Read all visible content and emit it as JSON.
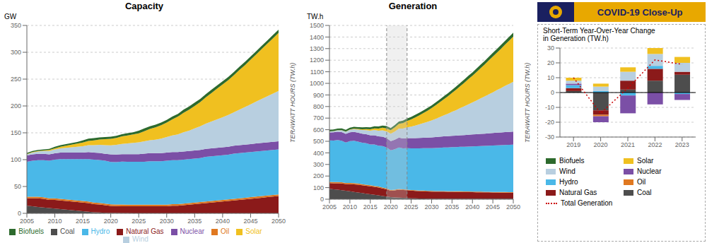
{
  "chart_data": [
    {
      "type": "area",
      "title": "Capacity",
      "ylabel": "GW",
      "annotations": [
        "TERAWATT HOURS  (TW.h)"
      ],
      "stacked": true,
      "grid": true,
      "legend": "bottom",
      "x": [
        2005,
        2006,
        2007,
        2008,
        2009,
        2010,
        2011,
        2012,
        2013,
        2014,
        2015,
        2016,
        2017,
        2018,
        2019,
        2020,
        2021,
        2022,
        2023,
        2024,
        2025,
        2026,
        2027,
        2028,
        2029,
        2030,
        2031,
        2032,
        2033,
        2034,
        2035,
        2036,
        2037,
        2038,
        2039,
        2040,
        2041,
        2042,
        2043,
        2044,
        2045,
        2046,
        2047,
        2048,
        2049,
        2050
      ],
      "xlim": [
        2005,
        2050
      ],
      "xticks": [
        2005,
        2010,
        2015,
        2020,
        2025,
        2030,
        2035,
        2040,
        2045,
        2050
      ],
      "ylim": [
        0,
        350
      ],
      "yticks": [
        0,
        50,
        100,
        150,
        200,
        250,
        300,
        350
      ],
      "series": [
        {
          "name": "Coal",
          "color": "#4d4d4d",
          "values": [
            14,
            13,
            12,
            11,
            10,
            9,
            8,
            7,
            6,
            5,
            4,
            3,
            2,
            1.5,
            1,
            0.8,
            0.5,
            0.3,
            0.2,
            0.1,
            0.1,
            0.1,
            0.1,
            0.1,
            0.1,
            0.1,
            0.1,
            0.1,
            0.1,
            0.1,
            0.1,
            0.1,
            0.1,
            0.1,
            0.1,
            0.1,
            0.1,
            0.1,
            0.1,
            0.1,
            0.1,
            0.1,
            0.1,
            0.1,
            0.1,
            0.1
          ]
        },
        {
          "name": "Natural Gas",
          "color": "#8b1a1a",
          "values": [
            14,
            15,
            16,
            16,
            15,
            16,
            16,
            16,
            16,
            16,
            16,
            16,
            15,
            15,
            14,
            13,
            13,
            13,
            13,
            13,
            13,
            13,
            13,
            13,
            13,
            13,
            14,
            14,
            15,
            16,
            17,
            18,
            19,
            20,
            21,
            22,
            23,
            24,
            25,
            26,
            27,
            28,
            29,
            30,
            31,
            32
          ]
        },
        {
          "name": "Oil",
          "color": "#e07820",
          "values": [
            3,
            3,
            3,
            3,
            3,
            3,
            3,
            3,
            3,
            3,
            3,
            3,
            3,
            3,
            3,
            3,
            3,
            3,
            3,
            3,
            3,
            3,
            3,
            3,
            3,
            3,
            3,
            3,
            3,
            3,
            3,
            3,
            3,
            3,
            3,
            3,
            3,
            3,
            3,
            3,
            3,
            3,
            3,
            3,
            3,
            3
          ]
        },
        {
          "name": "Hydro",
          "color": "#4ab8e8",
          "values": [
            65,
            67,
            68,
            69,
            70,
            72,
            74,
            75,
            76,
            77,
            78,
            79,
            80,
            80,
            80,
            79,
            79,
            80,
            80,
            80,
            80,
            80,
            81,
            81,
            81,
            82,
            82,
            82,
            82,
            82,
            82,
            82,
            83,
            83,
            83,
            83,
            83,
            84,
            84,
            84,
            84,
            84,
            84,
            84,
            84,
            84
          ]
        },
        {
          "name": "Nuclear",
          "color": "#7b4fa6",
          "values": [
            12,
            12,
            12,
            12,
            12,
            12,
            12,
            12,
            12,
            12,
            12,
            13,
            13,
            13,
            13,
            14,
            14,
            14,
            14,
            14,
            14,
            15,
            15,
            15,
            15,
            15,
            15,
            15,
            15,
            15,
            15,
            15,
            15,
            15,
            15,
            15,
            15,
            15,
            15,
            15,
            15,
            15,
            15,
            15,
            15,
            15
          ]
        },
        {
          "name": "Wind",
          "color": "#b8cfe0",
          "values": [
            2,
            3,
            4,
            5,
            6,
            7,
            8,
            9,
            10,
            11,
            12,
            13,
            14,
            15,
            16,
            17,
            18,
            19,
            20,
            21,
            22,
            23,
            24,
            25,
            27,
            29,
            31,
            33,
            36,
            38,
            41,
            44,
            47,
            50,
            53,
            56,
            59,
            62,
            66,
            70,
            74,
            78,
            82,
            86,
            90,
            94
          ]
        },
        {
          "name": "Solar",
          "color": "#f0c020",
          "values": [
            0.5,
            1,
            1,
            1,
            2,
            2,
            3,
            4,
            5,
            6,
            7,
            8,
            9,
            10,
            11,
            12,
            13,
            14,
            15,
            16,
            17,
            19,
            21,
            23,
            25,
            27,
            30,
            33,
            36,
            39,
            42,
            45,
            49,
            53,
            57,
            61,
            65,
            69,
            74,
            78,
            83,
            88,
            93,
            98,
            103,
            108
          ]
        },
        {
          "name": "Biofuels",
          "color": "#2d6a2d",
          "values": [
            2,
            2,
            2,
            2,
            2,
            3,
            3,
            3,
            3,
            3,
            4,
            4,
            4,
            4,
            4,
            4,
            4,
            4,
            4,
            4,
            5,
            5,
            5,
            5,
            5,
            5,
            5,
            5,
            6,
            6,
            6,
            6,
            6,
            6,
            6,
            6,
            6,
            6,
            6,
            6,
            6,
            6,
            6,
            6,
            6,
            6
          ]
        }
      ]
    },
    {
      "type": "area",
      "title": "Generation",
      "ylabel": "TW.h",
      "annotations": [
        "TERAWATT HOURS  (TW.h)"
      ],
      "stacked": true,
      "grid": true,
      "highlight_x": [
        2019,
        2024
      ],
      "x": [
        2005,
        2006,
        2007,
        2008,
        2009,
        2010,
        2011,
        2012,
        2013,
        2014,
        2015,
        2016,
        2017,
        2018,
        2019,
        2020,
        2021,
        2022,
        2023,
        2024,
        2025,
        2026,
        2027,
        2028,
        2029,
        2030,
        2031,
        2032,
        2033,
        2034,
        2035,
        2036,
        2037,
        2038,
        2039,
        2040,
        2041,
        2042,
        2043,
        2044,
        2045,
        2046,
        2047,
        2048,
        2049,
        2050
      ],
      "xlim": [
        2005,
        2050
      ],
      "xticks": [
        2005,
        2010,
        2015,
        2020,
        2025,
        2030,
        2035,
        2040,
        2045,
        2050
      ],
      "ylim": [
        0,
        1500
      ],
      "yticks": [
        0,
        100,
        200,
        300,
        400,
        500,
        600,
        700,
        800,
        900,
        1000,
        1100,
        1200,
        1300,
        1400,
        1500
      ],
      "series": [
        {
          "name": "Coal",
          "color": "#4d4d4d",
          "values": [
            90,
            85,
            82,
            78,
            73,
            68,
            63,
            58,
            53,
            48,
            43,
            38,
            33,
            28,
            23,
            18,
            16,
            14,
            12,
            10,
            8,
            7,
            6,
            6,
            5,
            5,
            5,
            5,
            5,
            5,
            5,
            5,
            5,
            5,
            5,
            5,
            5,
            5,
            5,
            5,
            5,
            5,
            5,
            5,
            5,
            5
          ]
        },
        {
          "name": "Natural Gas",
          "color": "#8b1a1a",
          "values": [
            48,
            52,
            55,
            58,
            58,
            62,
            65,
            67,
            68,
            68,
            68,
            68,
            68,
            65,
            63,
            55,
            60,
            68,
            68,
            67,
            66,
            65,
            64,
            63,
            62,
            61,
            60,
            60,
            60,
            59,
            59,
            58,
            58,
            57,
            57,
            56,
            55,
            55,
            54,
            54,
            53,
            53,
            52,
            52,
            51,
            51
          ]
        },
        {
          "name": "Oil",
          "color": "#e07820",
          "values": [
            12,
            11,
            11,
            10,
            10,
            10,
            10,
            10,
            9,
            9,
            9,
            8,
            8,
            8,
            7,
            7,
            7,
            6,
            6,
            6,
            5,
            5,
            5,
            5,
            5,
            5,
            5,
            5,
            5,
            5,
            5,
            5,
            5,
            5,
            5,
            5,
            5,
            5,
            5,
            5,
            5,
            5,
            5,
            5,
            5,
            5
          ]
        },
        {
          "name": "Hydro",
          "color": "#4ab8e8",
          "values": [
            358,
            358,
            362,
            358,
            348,
            362,
            367,
            362,
            358,
            358,
            353,
            358,
            353,
            358,
            353,
            343,
            348,
            358,
            353,
            358,
            360,
            362,
            364,
            366,
            368,
            370,
            372,
            374,
            376,
            378,
            380,
            382,
            384,
            386,
            388,
            390,
            392,
            394,
            396,
            398,
            400,
            402,
            404,
            406,
            408,
            410
          ]
        },
        {
          "name": "Nuclear",
          "color": "#7b4fa6",
          "values": [
            68,
            71,
            73,
            75,
            75,
            76,
            76,
            77,
            78,
            78,
            79,
            80,
            80,
            81,
            81,
            78,
            83,
            86,
            86,
            87,
            88,
            89,
            90,
            91,
            92,
            93,
            94,
            95,
            96,
            97,
            98,
            99,
            100,
            101,
            102,
            103,
            104,
            105,
            106,
            107,
            108,
            109,
            110,
            111,
            112,
            113
          ]
        },
        {
          "name": "Wind",
          "color": "#b8cfe0",
          "values": [
            8,
            10,
            12,
            15,
            18,
            21,
            24,
            27,
            31,
            35,
            40,
            45,
            50,
            55,
            59,
            64,
            70,
            77,
            84,
            92,
            100,
            108,
            117,
            126,
            136,
            146,
            158,
            170,
            182,
            194,
            207,
            220,
            234,
            248,
            262,
            276,
            291,
            306,
            321,
            337,
            352,
            368,
            383,
            399,
            415,
            430
          ]
        },
        {
          "name": "Solar",
          "color": "#f0c020",
          "values": [
            1,
            1,
            1,
            2,
            2,
            3,
            4,
            5,
            7,
            9,
            12,
            15,
            18,
            22,
            26,
            31,
            36,
            42,
            48,
            55,
            62,
            70,
            78,
            87,
            96,
            106,
            117,
            128,
            139,
            151,
            163,
            176,
            189,
            203,
            217,
            231,
            246,
            261,
            276,
            292,
            308,
            324,
            340,
            357,
            373,
            390
          ]
        },
        {
          "name": "Biofuels",
          "color": "#2d6a2d",
          "values": [
            14,
            14,
            14,
            15,
            15,
            15,
            16,
            16,
            17,
            17,
            17,
            18,
            18,
            19,
            19,
            19,
            20,
            20,
            21,
            21,
            22,
            22,
            23,
            23,
            24,
            24,
            25,
            25,
            26,
            26,
            27,
            27,
            28,
            28,
            29,
            29,
            30,
            30,
            31,
            31,
            32,
            32,
            33,
            33,
            34,
            34
          ]
        }
      ]
    },
    {
      "type": "bar",
      "title": "Short-Term Year-Over-Year Change\nin Generation (TW.h)",
      "annotations": [
        "COVID-19 Close-Up"
      ],
      "stacked": true,
      "grid": true,
      "legend": "bottom",
      "categories": [
        "2019",
        "2020",
        "2021",
        "2022",
        "2023"
      ],
      "ylim": [
        -30,
        30
      ],
      "yticks": [
        -30,
        -20,
        -10,
        0,
        10,
        20,
        30
      ],
      "series": [
        {
          "name": "Coal",
          "color": "#4d4d4d",
          "values": [
            1,
            -12,
            2,
            8,
            12
          ]
        },
        {
          "name": "Natural Gas",
          "color": "#8b1a1a",
          "values": [
            2,
            -3,
            6,
            8,
            2
          ]
        },
        {
          "name": "Oil",
          "color": "#e07820",
          "values": [
            0,
            -1,
            0,
            0,
            0
          ]
        },
        {
          "name": "Hydro",
          "color": "#4ab8e8",
          "values": [
            2,
            1,
            -2,
            2,
            -1
          ]
        },
        {
          "name": "Nuclear",
          "color": "#7b4fa6",
          "values": [
            1,
            -4,
            -12,
            -8,
            -4
          ]
        },
        {
          "name": "Wind",
          "color": "#b8cfe0",
          "values": [
            2,
            3,
            6,
            8,
            6
          ]
        },
        {
          "name": "Solar",
          "color": "#f0c020",
          "values": [
            2,
            2,
            3,
            4,
            4
          ]
        },
        {
          "name": "Biofuels",
          "color": "#2d6a2d",
          "values": [
            0,
            0,
            0,
            0,
            0
          ]
        },
        {
          "name": "Total Generation",
          "type": "line",
          "line_style": "dotted",
          "color": "#cc0000",
          "values": [
            10,
            -14,
            3,
            22,
            19
          ]
        }
      ]
    }
  ]
}
